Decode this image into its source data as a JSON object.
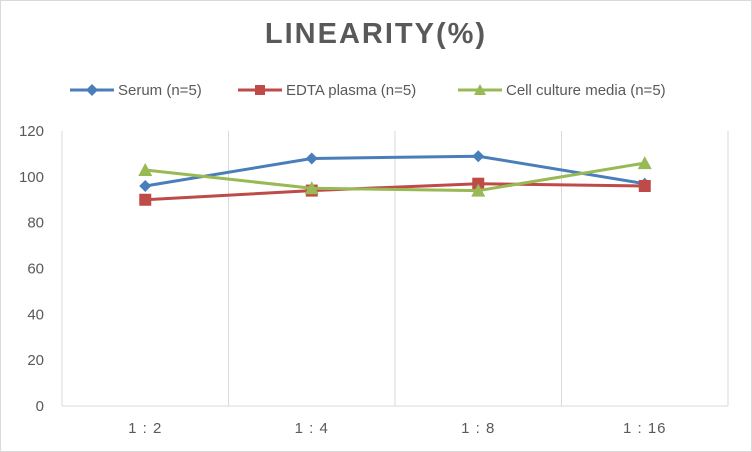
{
  "chart_data": {
    "type": "line",
    "title": "LINEARITY(%)",
    "xlabel": "",
    "ylabel": "",
    "categories": [
      "1:2",
      "1:4",
      "1:8",
      "1:16"
    ],
    "ylim": [
      0,
      120
    ],
    "yticks": [
      "0",
      "20",
      "40",
      "60",
      "80",
      "100",
      "120"
    ],
    "grid": "vertical",
    "legend_position": "top",
    "series": [
      {
        "name": "Serum (n=5)",
        "values": [
          96,
          108,
          109,
          97
        ],
        "color": "#4a7ebb",
        "marker": "diamond"
      },
      {
        "name": "EDTA plasma (n=5)",
        "values": [
          90,
          94,
          97,
          96
        ],
        "color": "#be4b48",
        "marker": "square"
      },
      {
        "name": "Cell culture media (n=5)",
        "values": [
          103,
          95,
          94,
          106
        ],
        "color": "#98b954",
        "marker": "triangle"
      }
    ]
  }
}
